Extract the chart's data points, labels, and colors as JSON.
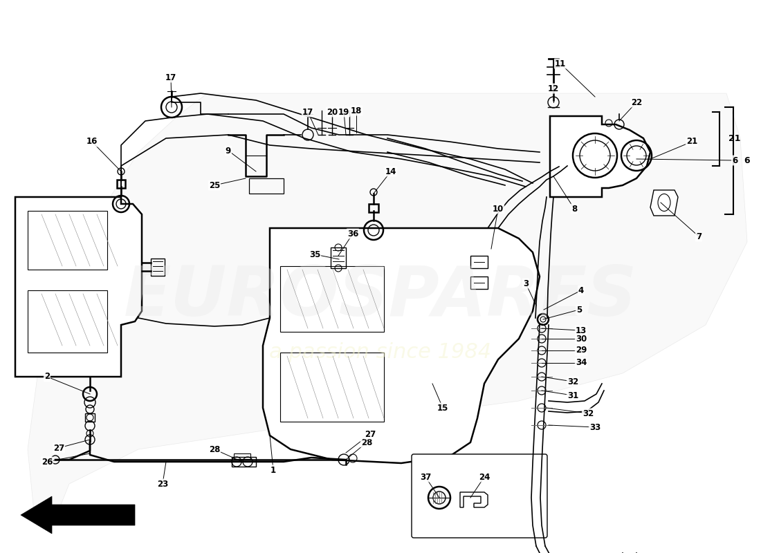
{
  "bg_color": "#ffffff",
  "lw": 1.2,
  "lw_thick": 1.8,
  "color": "black",
  "watermark1": "EUROSPARES",
  "watermark2": "a passion since 1984",
  "figw": 11.0,
  "figh": 8.0,
  "dpi": 100
}
